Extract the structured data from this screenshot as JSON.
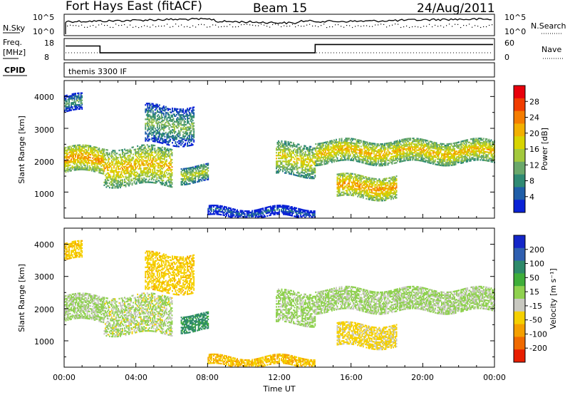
{
  "header": {
    "station": "Fort Hays East (fitACF)",
    "beam": "Beam 15",
    "date": "24/Aug/2011"
  },
  "panels": {
    "noise": {
      "left_label": "N.Sky",
      "left_ticks": [
        "10^5",
        "10^0"
      ],
      "right_label": "N.Search",
      "right_ticks": [
        "10^5",
        "10^0"
      ]
    },
    "freq": {
      "left_label_1": "Freq.",
      "left_label_2": "[MHz]",
      "left_ticks": [
        "18",
        "8"
      ],
      "right_label": "Nave",
      "right_ticks": [
        "60",
        "0"
      ]
    },
    "cpid": {
      "label": "CPID",
      "mode": "themis 3300 IF"
    }
  },
  "axes": {
    "ylabel": "Slant Range [km]",
    "yticks": [
      "4000",
      "3000",
      "2000",
      "1000"
    ],
    "xlabel": "Time UT",
    "xticks": [
      "00:00",
      "04:00",
      "08:00",
      "12:00",
      "16:00",
      "20:00",
      "00:00"
    ]
  },
  "colorbars": {
    "power": {
      "title": "Power [dB]",
      "ticks": [
        "28",
        "24",
        "20",
        "16",
        "12",
        "8",
        "4"
      ],
      "colors": [
        "#e8000b",
        "#f03c00",
        "#f57d00",
        "#f2b000",
        "#d8d400",
        "#a3c93d",
        "#6aa86a",
        "#2f8a73",
        "#1f5ea8",
        "#0a22d6"
      ]
    },
    "velocity": {
      "title": "Velocity [m s⁻¹]",
      "ticks": [
        "200",
        "100",
        "50",
        "15",
        "-15",
        "-50",
        "-100",
        "-200"
      ],
      "colors": [
        "#1426c8",
        "#2f5fb0",
        "#2e8a6a",
        "#3fae3a",
        "#8fd14f",
        "#c8c8c0",
        "#f5d000",
        "#f5a000",
        "#f06a00",
        "#e81e00"
      ]
    }
  },
  "chart_data": {
    "type": "heatmap",
    "title": "Fort Hays East (fitACF)   Beam 15   24/Aug/2011",
    "xlabel": "Time UT",
    "ylabel": "Slant Range [km]",
    "xlim": [
      "00:00",
      "24:00"
    ],
    "ylim": [
      180,
      4500
    ],
    "frequency_mhz": {
      "times_ut": [
        0,
        2,
        14,
        24
      ],
      "values": [
        14.5,
        11.3,
        15.2,
        15.2
      ]
    },
    "nave": {
      "value": 20
    },
    "power_colorbar": {
      "label": "Power [dB]",
      "range": [
        0,
        30
      ],
      "ticks": [
        4,
        8,
        12,
        16,
        20,
        24,
        28
      ]
    },
    "velocity_colorbar": {
      "label": "Velocity [m s-1]",
      "ticks": [
        200,
        100,
        50,
        15,
        -15,
        -50,
        -100,
        -200
      ]
    },
    "echo_regions": [
      {
        "t0": 0.0,
        "t1": 2.2,
        "r_low": 1600,
        "r_high": 2400,
        "power_db": 22,
        "velocity": -10
      },
      {
        "t0": 0.0,
        "t1": 1.0,
        "r_low": 3500,
        "r_high": 4000,
        "power_db": 10,
        "velocity": -60
      },
      {
        "t0": 2.2,
        "t1": 6.0,
        "r_low": 1200,
        "r_high": 2400,
        "power_db": 20,
        "velocity": -15
      },
      {
        "t0": 4.5,
        "t1": 7.2,
        "r_low": 2500,
        "r_high": 3700,
        "power_db": 12,
        "velocity": -60
      },
      {
        "t0": 6.5,
        "t1": 8.0,
        "r_low": 1300,
        "r_high": 1800,
        "power_db": 16,
        "velocity": 40
      },
      {
        "t0": 11.8,
        "t1": 14.0,
        "r_low": 1500,
        "r_high": 2500,
        "power_db": 18,
        "velocity": -5
      },
      {
        "t0": 14.0,
        "t1": 24.0,
        "r_low": 1900,
        "r_high": 2600,
        "power_db": 20,
        "velocity": -10
      },
      {
        "t0": 15.2,
        "t1": 18.5,
        "r_low": 800,
        "r_high": 1500,
        "power_db": 22,
        "velocity": -40
      },
      {
        "t0": 8.0,
        "t1": 14.0,
        "r_low": 200,
        "r_high": 500,
        "power_db": 5,
        "velocity": -70
      }
    ]
  }
}
